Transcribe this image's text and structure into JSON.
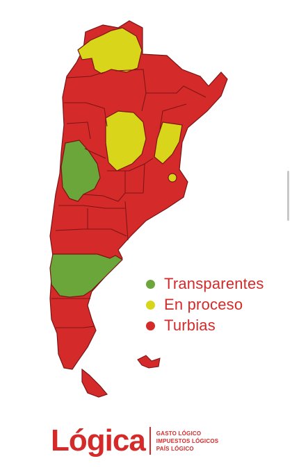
{
  "legend": [
    {
      "label": "Transparentes",
      "color": "#6aa63a"
    },
    {
      "label": "En proceso",
      "color": "#d9d51b"
    },
    {
      "label": "Turbias",
      "color": "#d42a2a"
    }
  ],
  "logo": {
    "wordmark": "Lógica",
    "taglines": [
      "GASTO LÓGICO",
      "IMPUESTOS LÓGICOS",
      "PAÍS LÓGICO"
    ]
  },
  "map": {
    "statuses": {
      "jujuy-salta-north": "En proceso",
      "santiago-del-estero": "En proceso",
      "corrientes": "En proceso",
      "san-juan": "Transparentes",
      "chubut": "Transparentes",
      "caba": "En proceso",
      "rest": "Turbias"
    }
  }
}
